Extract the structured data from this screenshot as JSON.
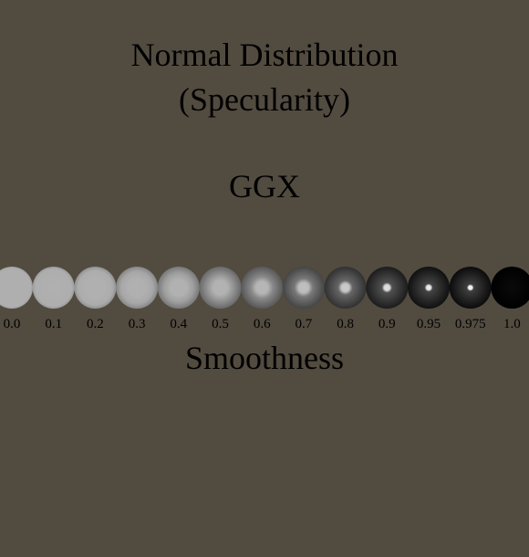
{
  "title_line1": "Normal Distribution",
  "title_line2": "(Specularity)",
  "subtitle": "GGX",
  "axis_label": "Smoothness",
  "colors": {
    "background": "#524b40",
    "text": "#000000"
  },
  "samples": [
    {
      "label": "0.0",
      "value": 0.0
    },
    {
      "label": "0.1",
      "value": 0.1
    },
    {
      "label": "0.2",
      "value": 0.2
    },
    {
      "label": "0.3",
      "value": 0.3
    },
    {
      "label": "0.4",
      "value": 0.4
    },
    {
      "label": "0.5",
      "value": 0.5
    },
    {
      "label": "0.6",
      "value": 0.6
    },
    {
      "label": "0.7",
      "value": 0.7
    },
    {
      "label": "0.8",
      "value": 0.8
    },
    {
      "label": "0.9",
      "value": 0.9
    },
    {
      "label": "0.95",
      "value": 0.95
    },
    {
      "label": "0.975",
      "value": 0.975
    },
    {
      "label": "1.0",
      "value": 1.0
    }
  ]
}
